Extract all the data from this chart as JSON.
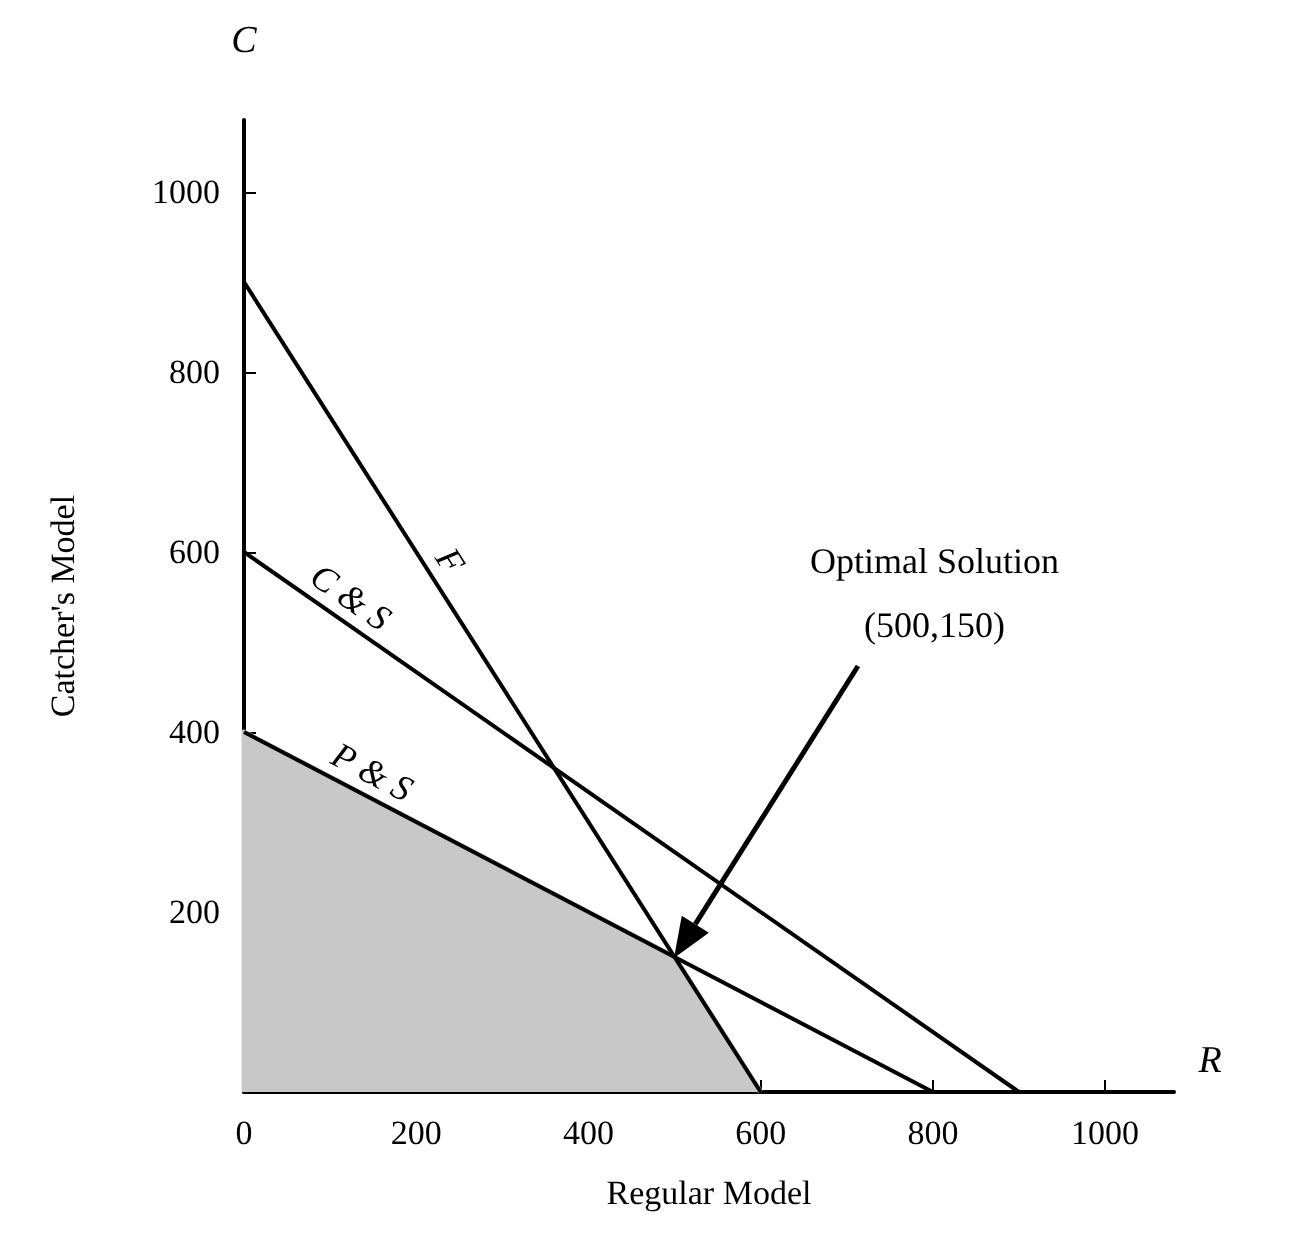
{
  "chart_data": {
    "type": "line",
    "xlabel": "Regular Model",
    "ylabel": "Catcher's Model",
    "xlim": [
      0,
      1080
    ],
    "ylim": [
      0,
      1080
    ],
    "xticks": [
      0,
      200,
      400,
      600,
      800,
      1000
    ],
    "yticks": [
      200,
      400,
      600,
      800,
      1000
    ],
    "series": [
      {
        "type": "area",
        "color": "#c8c8c8",
        "x": [
          0,
          0,
          500,
          600
        ],
        "values": [
          0,
          400,
          150,
          0
        ]
      },
      {
        "name": "F",
        "color": "#000000",
        "x": [
          0,
          600
        ],
        "values": [
          900,
          0
        ]
      },
      {
        "name": "C & S",
        "color": "#000000",
        "x": [
          0,
          900
        ],
        "values": [
          600,
          0
        ]
      },
      {
        "name": "P & S",
        "color": "#000000",
        "x": [
          0,
          800
        ],
        "values": [
          400,
          0
        ]
      }
    ],
    "annotations": [
      "C",
      "R",
      "Optimal Solution\n(500,150)"
    ],
    "grid": false,
    "legend": false,
    "marker": "none",
    "line_style": "solid"
  }
}
